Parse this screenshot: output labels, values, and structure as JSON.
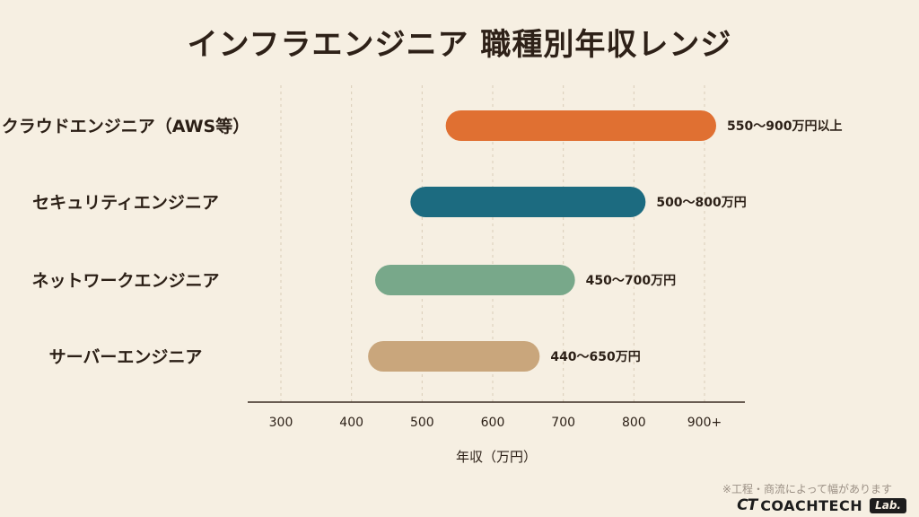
{
  "title": "インフラエンジニア 職種別年収レンジ",
  "chart_data": {
    "type": "bar",
    "orientation": "horizontal-range",
    "title": "インフラエンジニア 職種別年収レンジ",
    "xlabel": "年収（万円）",
    "ylabel": "",
    "xlim": [
      300,
      950
    ],
    "x_ticks": [
      {
        "value": 300,
        "label": "300"
      },
      {
        "value": 400,
        "label": "400"
      },
      {
        "value": 500,
        "label": "500"
      },
      {
        "value": 600,
        "label": "600"
      },
      {
        "value": 700,
        "label": "700"
      },
      {
        "value": 800,
        "label": "800"
      },
      {
        "value": 900,
        "label": "900+"
      }
    ],
    "grid": true,
    "categories": [
      "クラウドエンジニア（AWS等）",
      "セキュリティエンジニア",
      "ネットワークエンジニア",
      "サーバーエンジニア"
    ],
    "series": [
      {
        "category": "クラウドエンジニア（AWS等）",
        "min": 550,
        "max": 900,
        "label": "550～900万円以上",
        "color": "#e07032"
      },
      {
        "category": "セキュリティエンジニア",
        "min": 500,
        "max": 800,
        "label": "500～800万円",
        "color": "#1c6b80"
      },
      {
        "category": "ネットワークエンジニア",
        "min": 450,
        "max": 700,
        "label": "450～700万円",
        "color": "#78a88a"
      },
      {
        "category": "サーバーエンジニア",
        "min": 440,
        "max": 650,
        "label": "440～650万円",
        "color": "#c9a67c"
      }
    ]
  },
  "footnote": "※工程・商流によって幅があります",
  "brand": {
    "mark": "CT",
    "name": "COACHTECH",
    "lab": "Lab."
  }
}
